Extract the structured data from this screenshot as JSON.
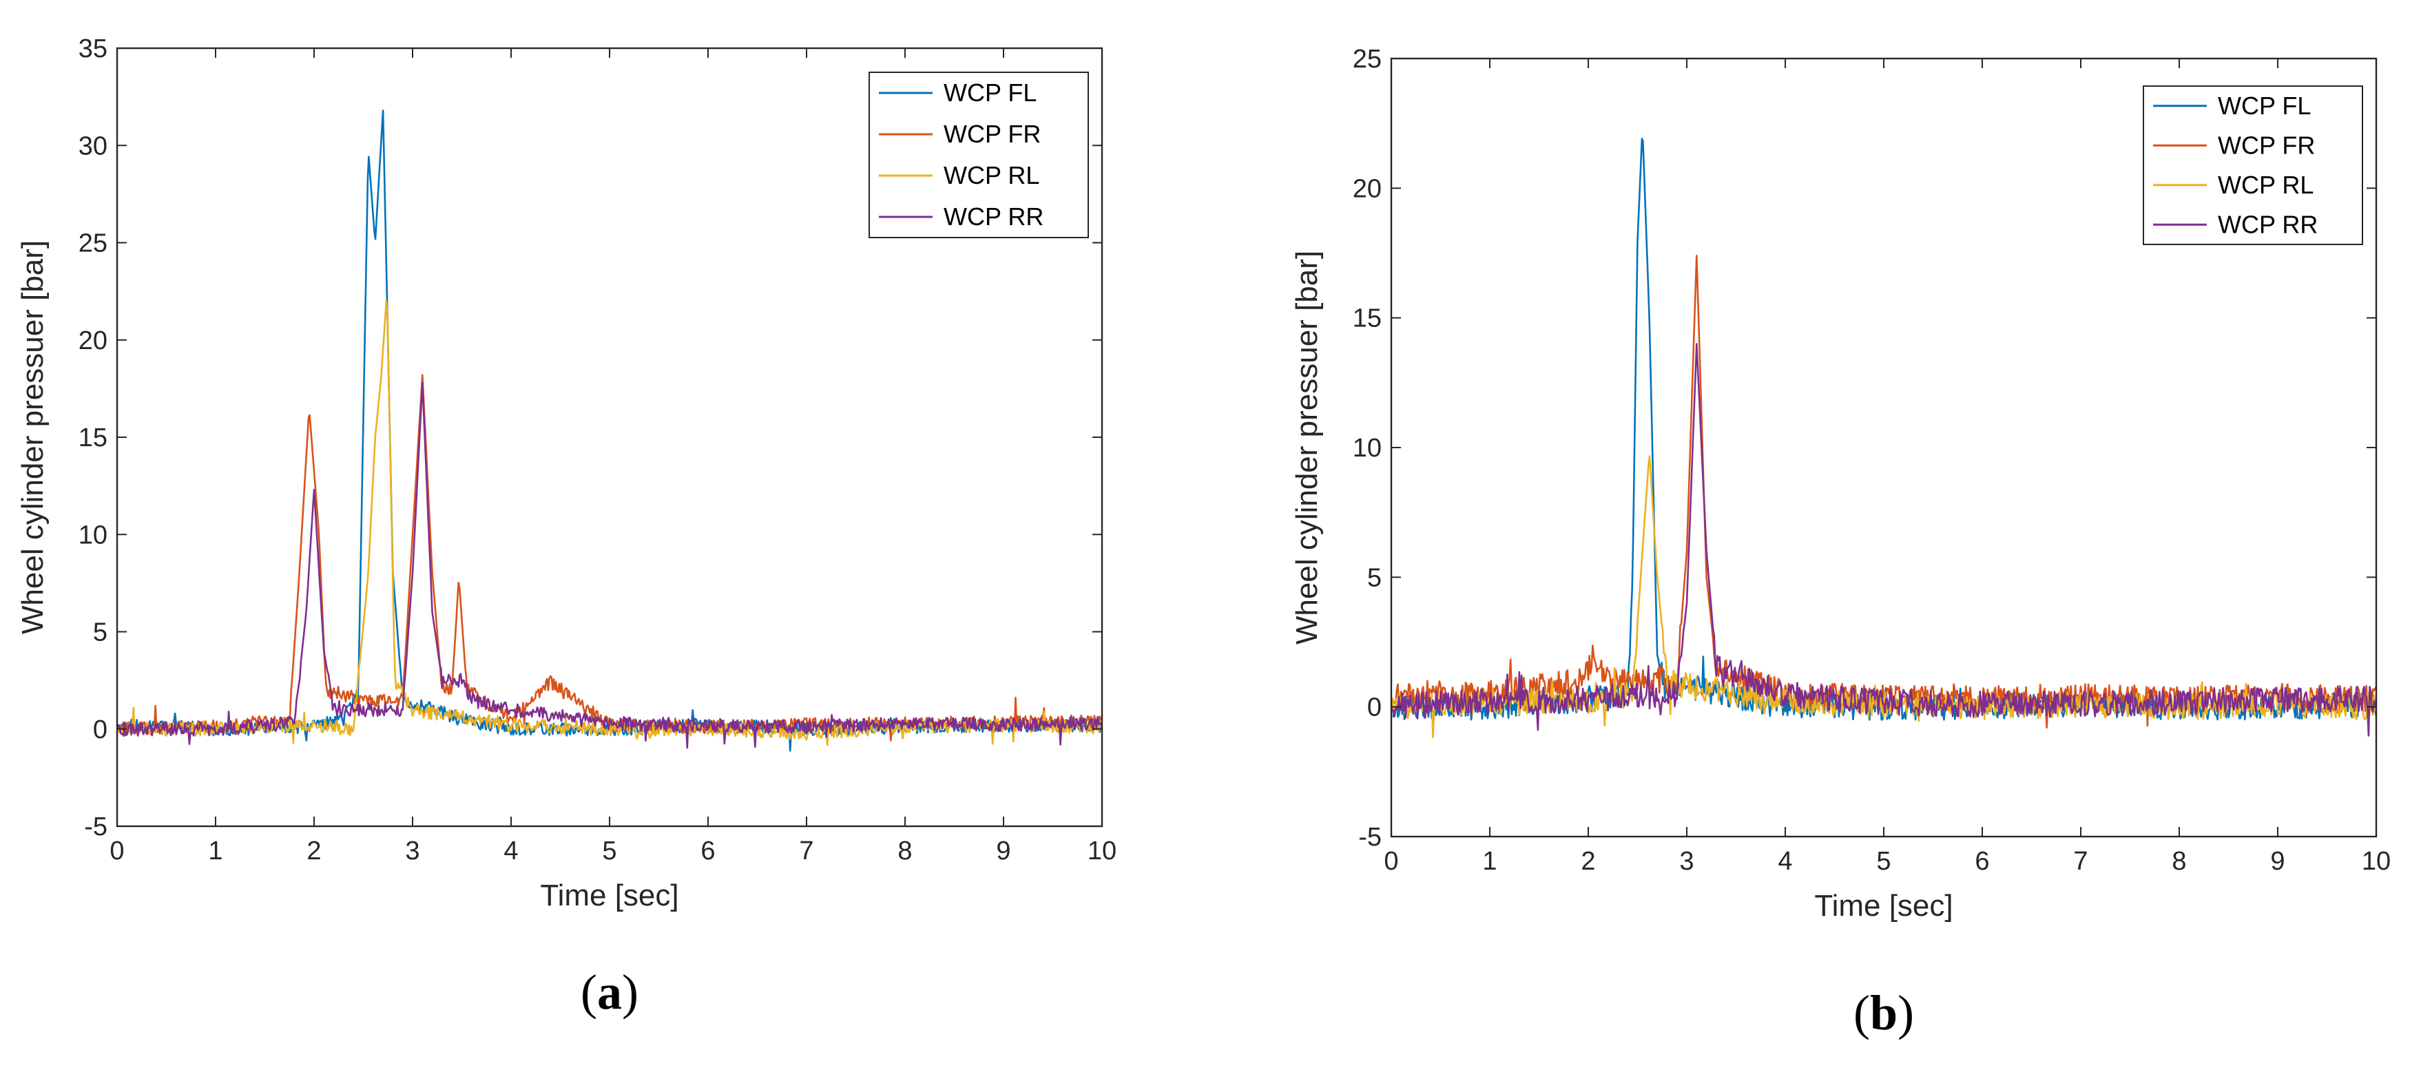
{
  "colors": {
    "WCP FL": "#0072BD",
    "WCP FR": "#D95319",
    "WCP RL": "#EDB120",
    "WCP RR": "#7E2F8E",
    "axis": "#262626"
  },
  "chart_data": [
    {
      "type": "line",
      "panel_label": {
        "open": "(",
        "letter": "a",
        "close": ")"
      },
      "xlabel": "Time [sec]",
      "ylabel": "Wheel cylinder pressuer [bar]",
      "xlim": [
        0,
        10
      ],
      "ylim": [
        -5,
        35
      ],
      "xticks": [
        0,
        1,
        2,
        3,
        4,
        5,
        6,
        7,
        8,
        9,
        10
      ],
      "yticks": [
        -5,
        0,
        5,
        10,
        15,
        20,
        25,
        30,
        35
      ],
      "legend_position": "top-right",
      "series": [
        {
          "name": "WCP FL",
          "values": [
            [
              0,
              0.2
            ],
            [
              1,
              0
            ],
            [
              2,
              0.1
            ],
            [
              2.3,
              0.5
            ],
            [
              2.45,
              2
            ],
            [
              2.55,
              29.8
            ],
            [
              2.62,
              25
            ],
            [
              2.7,
              31.8
            ],
            [
              2.8,
              8
            ],
            [
              2.9,
              1.5
            ],
            [
              3.5,
              0.5
            ],
            [
              4,
              0
            ],
            [
              5,
              0
            ],
            [
              6,
              0.2
            ],
            [
              7,
              0
            ],
            [
              8,
              0.1
            ],
            [
              9,
              0.2
            ],
            [
              10,
              0.2
            ]
          ]
        },
        {
          "name": "WCP FR",
          "values": [
            [
              0,
              0
            ],
            [
              1,
              0.1
            ],
            [
              1.75,
              0.5
            ],
            [
              1.85,
              8
            ],
            [
              1.95,
              16.5
            ],
            [
              2.05,
              10
            ],
            [
              2.12,
              2
            ],
            [
              2.5,
              1.5
            ],
            [
              2.9,
              1.5
            ],
            [
              3,
              10
            ],
            [
              3.1,
              18.2
            ],
            [
              3.2,
              8
            ],
            [
              3.3,
              2
            ],
            [
              3.4,
              2
            ],
            [
              3.47,
              7.8
            ],
            [
              3.55,
              2
            ],
            [
              4,
              0.5
            ],
            [
              4.4,
              2.4
            ],
            [
              5,
              0.2
            ],
            [
              6,
              0.1
            ],
            [
              7,
              0.2
            ],
            [
              8,
              0.3
            ],
            [
              9,
              0.3
            ],
            [
              10,
              0.4
            ]
          ]
        },
        {
          "name": "WCP RL",
          "values": [
            [
              0,
              0
            ],
            [
              1,
              0
            ],
            [
              2,
              0.2
            ],
            [
              2.4,
              0
            ],
            [
              2.55,
              8
            ],
            [
              2.62,
              15
            ],
            [
              2.68,
              18
            ],
            [
              2.74,
              22.5
            ],
            [
              2.82,
              2.5
            ],
            [
              3,
              1
            ],
            [
              4,
              0.2
            ],
            [
              5,
              0
            ],
            [
              6,
              0
            ],
            [
              7,
              -0.2
            ],
            [
              8,
              0.1
            ],
            [
              9,
              0.2
            ],
            [
              10,
              0.1
            ]
          ]
        },
        {
          "name": "WCP RR",
          "values": [
            [
              0,
              0
            ],
            [
              1,
              0
            ],
            [
              1.8,
              0.3
            ],
            [
              1.92,
              6
            ],
            [
              2,
              12.3
            ],
            [
              2.1,
              4
            ],
            [
              2.2,
              1
            ],
            [
              2.9,
              1
            ],
            [
              3,
              8
            ],
            [
              3.1,
              17.8
            ],
            [
              3.2,
              6
            ],
            [
              3.3,
              2.5
            ],
            [
              3.5,
              2.5
            ],
            [
              3.6,
              1.5
            ],
            [
              4,
              1
            ],
            [
              5,
              0.3
            ],
            [
              6,
              0.2
            ],
            [
              7,
              0.1
            ],
            [
              8,
              0.3
            ],
            [
              9,
              0.2
            ],
            [
              10,
              0.3
            ]
          ]
        }
      ]
    },
    {
      "type": "line",
      "panel_label": {
        "open": "(",
        "letter": "b",
        "close": ")"
      },
      "xlabel": "Time [sec]",
      "ylabel": "Wheel cylinder pressuer [bar]",
      "xlim": [
        0,
        10
      ],
      "ylim": [
        -5,
        25
      ],
      "xticks": [
        0,
        1,
        2,
        3,
        4,
        5,
        6,
        7,
        8,
        9,
        10
      ],
      "yticks": [
        -5,
        0,
        5,
        10,
        15,
        20,
        25
      ],
      "legend_position": "top-right",
      "series": [
        {
          "name": "WCP FL",
          "values": [
            [
              0,
              0
            ],
            [
              1,
              0
            ],
            [
              2,
              0.3
            ],
            [
              2.4,
              0.5
            ],
            [
              2.45,
              5
            ],
            [
              2.5,
              18
            ],
            [
              2.55,
              22.4
            ],
            [
              2.62,
              15
            ],
            [
              2.7,
              2
            ],
            [
              2.8,
              0.5
            ],
            [
              3,
              0.8
            ],
            [
              4,
              0
            ],
            [
              5,
              0
            ],
            [
              6,
              0
            ],
            [
              7,
              0.1
            ],
            [
              8,
              0
            ],
            [
              9,
              0
            ],
            [
              10,
              0.1
            ]
          ]
        },
        {
          "name": "WCP FR",
          "values": [
            [
              0,
              0.5
            ],
            [
              1,
              0.5
            ],
            [
              1.95,
              1
            ],
            [
              2.05,
              2
            ],
            [
              2.2,
              1
            ],
            [
              2.9,
              1
            ],
            [
              3,
              6
            ],
            [
              3.1,
              17.4
            ],
            [
              3.2,
              5
            ],
            [
              3.3,
              1.5
            ],
            [
              4,
              0.5
            ],
            [
              5,
              0.4
            ],
            [
              6,
              0.3
            ],
            [
              7,
              0.4
            ],
            [
              8,
              0.3
            ],
            [
              9,
              0.4
            ],
            [
              10,
              0.3
            ]
          ]
        },
        {
          "name": "WCP RL",
          "values": [
            [
              0,
              0
            ],
            [
              1,
              0.2
            ],
            [
              2,
              0.2
            ],
            [
              2.45,
              0.5
            ],
            [
              2.55,
              6
            ],
            [
              2.62,
              9.8
            ],
            [
              2.7,
              5
            ],
            [
              2.8,
              1
            ],
            [
              3,
              0.8
            ],
            [
              4,
              0.2
            ],
            [
              5,
              0.1
            ],
            [
              6,
              0
            ],
            [
              7,
              0.1
            ],
            [
              8,
              0
            ],
            [
              9,
              0.1
            ],
            [
              10,
              0
            ]
          ]
        },
        {
          "name": "WCP RR",
          "values": [
            [
              0,
              0
            ],
            [
              1,
              0.2
            ],
            [
              2,
              0.3
            ],
            [
              2.9,
              0.5
            ],
            [
              3,
              4
            ],
            [
              3.1,
              14
            ],
            [
              3.2,
              6
            ],
            [
              3.3,
              1.5
            ],
            [
              4,
              0.5
            ],
            [
              5,
              0.2
            ],
            [
              6,
              0.1
            ],
            [
              7,
              0.1
            ],
            [
              8,
              0.2
            ],
            [
              9,
              0.3
            ],
            [
              10,
              0.3
            ]
          ]
        }
      ]
    }
  ]
}
